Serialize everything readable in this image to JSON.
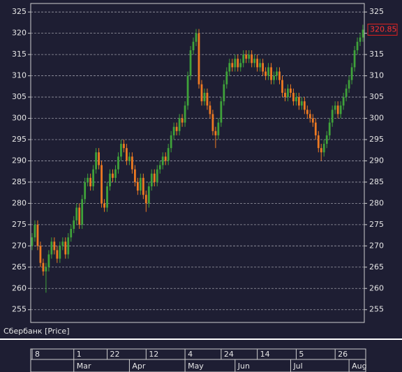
{
  "chart_data": {
    "type": "candlestick",
    "series_label": "Сбербанк [Price]",
    "up_color": "#3fa23a",
    "down_color": "#ee7a22",
    "grid": true,
    "ylim": [
      252,
      327
    ],
    "yticks": [
      255,
      260,
      265,
      270,
      275,
      280,
      285,
      290,
      295,
      300,
      305,
      310,
      315,
      320,
      325
    ],
    "categories": [
      "8",
      null,
      null,
      null,
      null,
      null,
      null,
      null,
      null,
      null,
      null,
      null,
      null,
      null,
      null,
      "1",
      null,
      null,
      null,
      null,
      null,
      null,
      null,
      null,
      null,
      null,
      null,
      "22",
      null,
      null,
      null,
      null,
      null,
      null,
      null,
      null,
      null,
      null,
      null,
      null,
      null,
      "12",
      null,
      null,
      null,
      null,
      null,
      null,
      null,
      null,
      null,
      null,
      null,
      null,
      null,
      "4",
      null,
      null,
      null,
      null,
      null,
      null,
      null,
      null,
      null,
      null,
      null,
      null,
      "24",
      null,
      null,
      null,
      null,
      null,
      null,
      null,
      null,
      null,
      null,
      null,
      null,
      "14",
      null,
      null,
      null,
      null,
      null,
      null,
      null,
      null,
      null,
      null,
      null,
      null,
      null,
      "5",
      null,
      null,
      null,
      null,
      null,
      null,
      null,
      null,
      null,
      null,
      null,
      null,
      null,
      "26",
      null,
      null,
      null,
      null,
      null,
      null,
      null,
      null,
      null,
      null
    ],
    "months": [
      null,
      null,
      null,
      null,
      null,
      null,
      null,
      null,
      null,
      null,
      null,
      null,
      null,
      null,
      null,
      "Mar",
      null,
      null,
      null,
      null,
      null,
      null,
      null,
      null,
      null,
      null,
      null,
      null,
      null,
      null,
      null,
      null,
      null,
      null,
      null,
      "Apr",
      null,
      null,
      null,
      null,
      null,
      null,
      null,
      null,
      null,
      null,
      null,
      null,
      null,
      null,
      null,
      null,
      null,
      null,
      null,
      "May",
      null,
      null,
      null,
      null,
      null,
      null,
      null,
      null,
      null,
      null,
      null,
      null,
      null,
      null,
      null,
      null,
      null,
      "Jun",
      null,
      null,
      null,
      null,
      null,
      null,
      null,
      null,
      null,
      null,
      null,
      null,
      null,
      null,
      null,
      null,
      null,
      null,
      null,
      "Jul",
      null,
      null,
      null,
      null,
      null,
      null,
      null,
      null,
      null,
      null,
      null,
      null,
      null,
      null,
      null,
      null,
      null,
      null,
      null,
      null,
      "Aug",
      null,
      null,
      null,
      null,
      null
    ],
    "open": [
      270,
      272,
      275,
      270,
      266,
      264,
      265,
      268,
      271,
      269,
      267,
      270,
      271,
      268,
      272,
      274,
      276,
      279,
      275,
      281,
      285,
      286,
      284,
      288,
      292,
      289,
      280,
      279,
      284,
      287,
      286,
      288,
      291,
      294,
      293,
      290,
      291,
      288,
      285,
      283,
      286,
      282,
      280,
      284,
      287,
      285,
      288,
      289,
      291,
      290,
      293,
      296,
      298,
      297,
      300,
      299,
      303,
      310,
      316,
      318,
      320,
      308,
      304,
      306,
      303,
      301,
      297,
      296,
      299,
      304,
      308,
      311,
      313,
      312,
      314,
      312,
      313,
      315,
      314,
      315,
      313,
      314,
      312,
      313,
      311,
      310,
      312,
      309,
      310,
      311,
      309,
      306,
      305,
      307,
      306,
      304,
      305,
      303,
      304,
      302,
      301,
      300,
      299,
      296,
      293,
      292,
      294,
      296,
      299,
      302,
      303,
      301,
      303,
      305,
      307,
      309,
      312,
      316,
      318,
      319
    ],
    "high": [
      273,
      276,
      276,
      271,
      267,
      266,
      269,
      272,
      272,
      270,
      271,
      272,
      272,
      273,
      275,
      277,
      280,
      280,
      282,
      286,
      287,
      287,
      289,
      293,
      293,
      290,
      281,
      285,
      288,
      288,
      289,
      292,
      295,
      295,
      294,
      292,
      292,
      289,
      286,
      287,
      287,
      283,
      285,
      288,
      288,
      289,
      290,
      292,
      292,
      294,
      297,
      299,
      299,
      301,
      301,
      304,
      311,
      317,
      319,
      321,
      321,
      309,
      307,
      307,
      304,
      302,
      298,
      300,
      305,
      309,
      312,
      314,
      314,
      315,
      315,
      314,
      316,
      316,
      316,
      316,
      315,
      315,
      314,
      314,
      312,
      313,
      313,
      311,
      312,
      312,
      310,
      307,
      308,
      308,
      307,
      306,
      306,
      305,
      305,
      303,
      302,
      301,
      300,
      297,
      294,
      295,
      297,
      300,
      303,
      304,
      304,
      304,
      306,
      308,
      310,
      313,
      317,
      319,
      320,
      322
    ],
    "low": [
      269,
      271,
      269,
      265,
      263,
      259,
      264,
      267,
      268,
      266,
      266,
      269,
      267,
      267,
      271,
      273,
      275,
      274,
      274,
      280,
      284,
      283,
      283,
      287,
      288,
      279,
      278,
      278,
      283,
      285,
      285,
      287,
      290,
      292,
      289,
      289,
      287,
      284,
      282,
      282,
      281,
      278,
      279,
      283,
      284,
      284,
      287,
      288,
      289,
      289,
      292,
      295,
      296,
      296,
      298,
      298,
      302,
      309,
      315,
      317,
      307,
      303,
      303,
      302,
      300,
      296,
      293,
      295,
      298,
      303,
      307,
      310,
      311,
      311,
      311,
      311,
      312,
      313,
      313,
      312,
      312,
      311,
      311,
      310,
      309,
      309,
      308,
      308,
      309,
      308,
      305,
      304,
      304,
      305,
      303,
      303,
      302,
      302,
      301,
      300,
      299,
      298,
      295,
      292,
      290,
      291,
      293,
      295,
      298,
      301,
      300,
      300,
      302,
      304,
      306,
      308,
      311,
      315,
      317,
      318
    ],
    "close": [
      272,
      275,
      270,
      266,
      264,
      265,
      268,
      271,
      269,
      267,
      270,
      271,
      268,
      272,
      274,
      276,
      279,
      275,
      281,
      285,
      286,
      284,
      288,
      292,
      289,
      280,
      279,
      284,
      287,
      286,
      288,
      291,
      294,
      293,
      290,
      291,
      288,
      285,
      283,
      286,
      282,
      280,
      284,
      287,
      285,
      288,
      289,
      291,
      290,
      293,
      296,
      298,
      297,
      300,
      299,
      303,
      310,
      316,
      318,
      320,
      308,
      304,
      306,
      303,
      301,
      297,
      296,
      299,
      304,
      308,
      311,
      313,
      312,
      314,
      312,
      313,
      315,
      314,
      315,
      313,
      314,
      312,
      313,
      311,
      310,
      312,
      309,
      310,
      311,
      309,
      306,
      305,
      307,
      306,
      304,
      305,
      303,
      304,
      302,
      301,
      300,
      299,
      296,
      293,
      292,
      294,
      296,
      299,
      302,
      303,
      301,
      303,
      305,
      307,
      309,
      312,
      316,
      318,
      319,
      320.85
    ]
  }
}
